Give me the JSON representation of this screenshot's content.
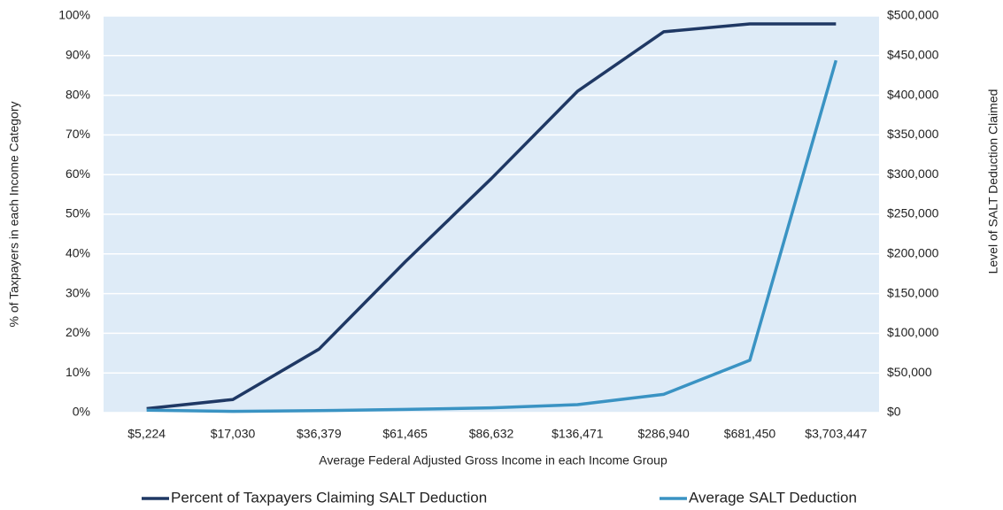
{
  "chart_data": {
    "type": "line",
    "x_label": "Average Federal Adjusted Gross Income in each Income Group",
    "y_label": "% of Taxpayers in each Income Category",
    "y2_label": "Level of SALT Deduction Claimed",
    "categories": [
      "$5,224",
      "$17,030",
      "$36,379",
      "$61,465",
      "$86,632",
      "$136,471",
      "$286,940",
      "$681,450",
      "$3,703,447"
    ],
    "series": [
      {
        "name": "Percent of Taxpayers Claiming SALT Deduction",
        "color": "#1f3864",
        "values": [
          1,
          3.3,
          16,
          38,
          59,
          81,
          96,
          98,
          98
        ]
      },
      {
        "name": "Average SALT Deduction",
        "color": "#3a93c3",
        "axis": "y2",
        "values": [
          3000,
          1500,
          2500,
          4000,
          6000,
          10000,
          23000,
          66000,
          444000
        ]
      }
    ],
    "ylim": [
      0,
      100
    ],
    "yticks": [
      {
        "value": 0,
        "label": "0%"
      },
      {
        "value": 10,
        "label": "10%"
      },
      {
        "value": 20,
        "label": "20%"
      },
      {
        "value": 30,
        "label": "30%"
      },
      {
        "value": 40,
        "label": "40%"
      },
      {
        "value": 50,
        "label": "50%"
      },
      {
        "value": 60,
        "label": "60%"
      },
      {
        "value": 70,
        "label": "70%"
      },
      {
        "value": 80,
        "label": "80%"
      },
      {
        "value": 90,
        "label": "90%"
      },
      {
        "value": 100,
        "label": "100%"
      }
    ],
    "y2lim": [
      0,
      500000
    ],
    "y2ticks": [
      {
        "value": 0,
        "label": "$0"
      },
      {
        "value": 50000,
        "label": "$50,000"
      },
      {
        "value": 100000,
        "label": "$100,000"
      },
      {
        "value": 150000,
        "label": "$150,000"
      },
      {
        "value": 200000,
        "label": "$200,000"
      },
      {
        "value": 250000,
        "label": "$250,000"
      },
      {
        "value": 300000,
        "label": "$300,000"
      },
      {
        "value": 350000,
        "label": "$350,000"
      },
      {
        "value": 400000,
        "label": "$400,000"
      },
      {
        "value": 450000,
        "label": "$450,000"
      },
      {
        "value": 500000,
        "label": "$500,000"
      }
    ],
    "grid": true,
    "legend": "bottom",
    "background": "#deebf7"
  }
}
